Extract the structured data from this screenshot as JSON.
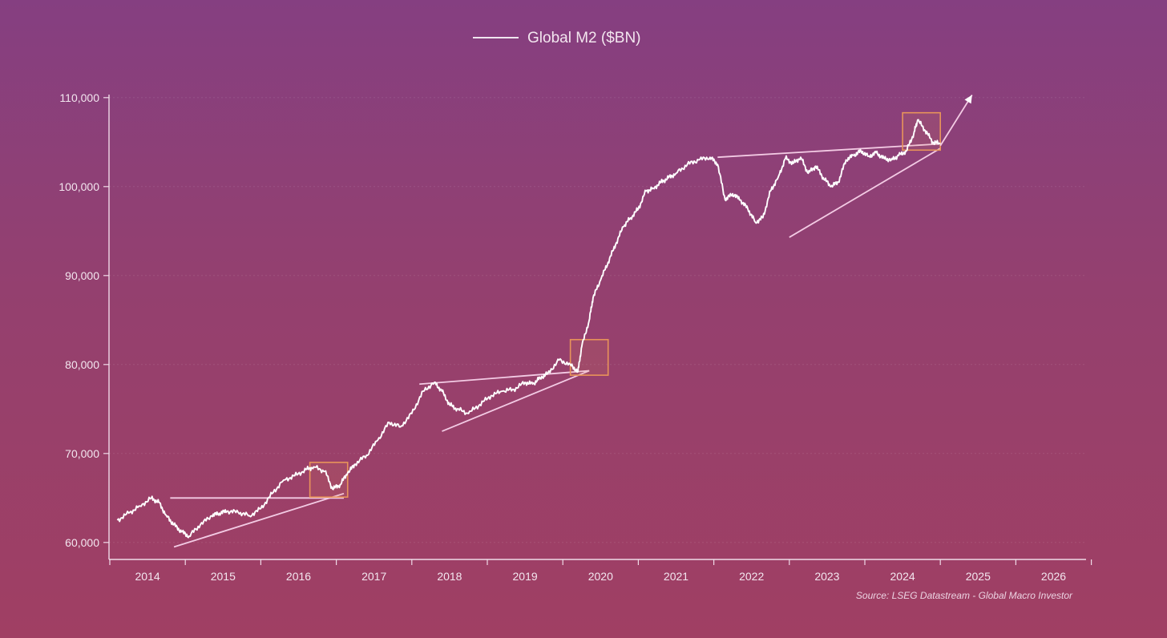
{
  "chart_data": {
    "type": "line",
    "title": "",
    "xlabel": "",
    "ylabel": "",
    "xlim": [
      2013.6,
      2026.6
    ],
    "ylim": [
      58000,
      110000
    ],
    "yticks": [
      60000,
      70000,
      80000,
      90000,
      100000,
      110000
    ],
    "ytick_labels": [
      "60,000",
      "70,000",
      "80,000",
      "90,000",
      "100,000",
      "110,000"
    ],
    "xtick_labels": [
      "2014",
      "2015",
      "2016",
      "2017",
      "2018",
      "2019",
      "2020",
      "2021",
      "2022",
      "2023",
      "2024",
      "2025",
      "2026"
    ],
    "grid": true,
    "legend_position": "top-center",
    "source_note": "Source: LSEG Datastream - Global Macro Investor",
    "colors": {
      "line": "#ffffff",
      "trendline": "#f3cbe4",
      "box": "#e8945a",
      "axis": "#f0dbe8"
    },
    "series": [
      {
        "name": "Global M2 ($BN)",
        "x": [
          2013.6,
          2013.75,
          2013.9,
          2014.05,
          2014.15,
          2014.25,
          2014.35,
          2014.45,
          2014.55,
          2014.7,
          2014.85,
          2014.95,
          2015.05,
          2015.2,
          2015.35,
          2015.5,
          2015.65,
          2015.8,
          2015.95,
          2016.1,
          2016.2,
          2016.35,
          2016.45,
          2016.55,
          2016.65,
          2016.75,
          2016.9,
          2017.05,
          2017.2,
          2017.35,
          2017.5,
          2017.65,
          2017.8,
          2017.9,
          2018.0,
          2018.1,
          2018.25,
          2018.4,
          2018.55,
          2018.7,
          2018.85,
          2019.0,
          2019.1,
          2019.2,
          2019.3,
          2019.45,
          2019.6,
          2019.7,
          2019.75,
          2019.85,
          2019.9,
          2020.0,
          2020.1,
          2020.2,
          2020.3,
          2020.4,
          2020.5,
          2020.6,
          2020.7,
          2020.8,
          2020.9,
          2021.0,
          2021.15,
          2021.3,
          2021.45,
          2021.55,
          2021.65,
          2021.75,
          2021.85,
          2021.95,
          2022.05,
          2022.15,
          2022.25,
          2022.35,
          2022.45,
          2022.55,
          2022.65,
          2022.75,
          2022.85,
          2022.95,
          2023.05,
          2023.15,
          2023.25,
          2023.35,
          2023.45,
          2023.55,
          2023.65,
          2023.75,
          2023.85,
          2023.95,
          2024.05,
          2024.15,
          2024.2,
          2024.3,
          2024.4,
          2024.5
        ],
        "values": [
          62500,
          63300,
          64100,
          65000,
          64500,
          63000,
          62000,
          61200,
          60700,
          62000,
          63000,
          63300,
          63500,
          63400,
          63000,
          63800,
          65500,
          67000,
          67500,
          68200,
          68500,
          68000,
          66000,
          66500,
          67800,
          68800,
          69800,
          71500,
          73500,
          73000,
          74500,
          77000,
          78000,
          77000,
          75500,
          75000,
          74500,
          75500,
          76500,
          77000,
          77200,
          78000,
          77800,
          78500,
          79000,
          80500,
          80000,
          79200,
          82000,
          85000,
          87500,
          89500,
          91500,
          93500,
          95500,
          96500,
          97500,
          99500,
          99800,
          100500,
          101000,
          101500,
          102500,
          103000,
          103300,
          102500,
          98500,
          99200,
          98500,
          97500,
          96000,
          96500,
          99500,
          101000,
          103200,
          102600,
          103300,
          101500,
          102300,
          101000,
          100000,
          100500,
          103000,
          103500,
          104000,
          103400,
          103800,
          103200,
          103000,
          103500,
          104000,
          106000,
          107500,
          106300,
          105000,
          104800
        ]
      }
    ],
    "trendlines": [
      {
        "x": [
          2014.35,
          2016.6
        ],
        "values": [
          59500,
          65500
        ]
      },
      {
        "x": [
          2014.3,
          2016.6
        ],
        "values": [
          65000,
          65000
        ]
      },
      {
        "x": [
          2017.9,
          2019.85
        ],
        "values": [
          72500,
          79300
        ]
      },
      {
        "x": [
          2017.6,
          2019.85
        ],
        "values": [
          77800,
          79300
        ]
      },
      {
        "x": [
          2022.5,
          2024.5
        ],
        "values": [
          94300,
          104300
        ]
      },
      {
        "x": [
          2021.55,
          2024.5
        ],
        "values": [
          103300,
          104800
        ]
      }
    ],
    "arrow": {
      "x": [
        2024.5,
        2024.92
      ],
      "values": [
        104600,
        110300
      ]
    },
    "highlight_boxes": [
      {
        "x": [
          2016.15,
          2016.65
        ],
        "values": [
          65100,
          69000
        ]
      },
      {
        "x": [
          2019.6,
          2020.1
        ],
        "values": [
          78800,
          82800
        ]
      },
      {
        "x": [
          2024.0,
          2024.5
        ],
        "values": [
          104100,
          108300
        ]
      }
    ]
  }
}
